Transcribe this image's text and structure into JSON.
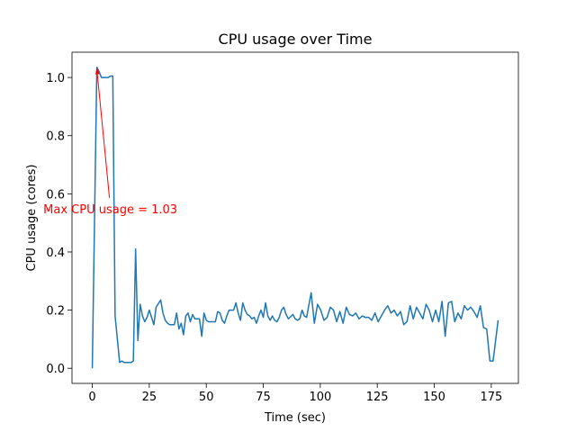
{
  "chart_data": {
    "type": "line",
    "title": "CPU usage over Time",
    "xlabel": "Time (sec)",
    "ylabel": "CPU usage (cores)",
    "x": [
      0,
      2,
      3,
      4,
      5,
      6,
      7,
      8,
      9,
      10,
      12,
      13,
      14,
      15,
      17,
      18,
      19,
      20,
      21,
      22,
      23,
      24,
      25,
      26,
      27,
      28,
      30,
      31,
      32,
      33,
      34,
      35,
      36,
      37,
      38,
      39,
      40,
      41,
      42,
      43,
      44,
      45,
      46,
      47,
      48,
      49,
      50,
      51,
      52,
      54,
      55,
      56,
      57,
      58,
      59,
      60,
      62,
      63,
      64,
      65,
      66,
      67,
      68,
      69,
      70,
      71,
      72,
      73,
      74,
      75,
      76,
      77,
      78,
      79,
      80,
      81,
      82,
      83,
      84,
      85,
      86,
      88,
      89,
      90,
      91,
      92,
      93,
      94,
      96,
      97.4,
      98.8,
      100.2,
      101.6,
      103,
      104.4,
      105.8,
      107.2,
      108.6,
      110,
      111.4,
      112.8,
      114.2,
      115.6,
      117,
      118.4,
      119.8,
      121.2,
      122.6,
      124,
      125.4,
      126.8,
      128.2,
      129.6,
      131,
      132.4,
      133.8,
      135.2,
      136.6,
      138,
      139.4,
      140.8,
      142.2,
      143.6,
      145,
      146.4,
      147.8,
      149.2,
      150.6,
      152,
      153.4,
      154.8,
      156.2,
      157.6,
      159,
      160.4,
      161.8,
      163.2,
      164.6,
      166,
      167.4,
      168.8,
      170.2,
      171.6,
      173,
      174.4,
      175.8,
      178
    ],
    "series": [
      {
        "name": "CPU usage",
        "color": "#1f77b4",
        "values": [
          0,
          1.035,
          1.02,
          1,
          1,
          1,
          1,
          1.005,
          1.005,
          0.18,
          0.02,
          0.025,
          0.02,
          0.02,
          0.02,
          0.025,
          0.41,
          0.095,
          0.22,
          0.18,
          0.16,
          0.175,
          0.2,
          0.175,
          0.15,
          0.21,
          0.235,
          0.19,
          0.165,
          0.155,
          0.15,
          0.15,
          0.15,
          0.19,
          0.135,
          0.155,
          0.115,
          0.18,
          0.19,
          0.16,
          0.185,
          0.17,
          0.17,
          0.17,
          0.11,
          0.19,
          0.165,
          0.16,
          0.16,
          0.16,
          0.195,
          0.19,
          0.165,
          0.155,
          0.18,
          0.2,
          0.2,
          0.225,
          0.19,
          0.165,
          0.225,
          0.2,
          0.185,
          0.18,
          0.17,
          0.175,
          0.155,
          0.18,
          0.2,
          0.175,
          0.225,
          0.18,
          0.165,
          0.18,
          0.165,
          0.16,
          0.175,
          0.2,
          0.21,
          0.185,
          0.17,
          0.185,
          0.17,
          0.165,
          0.17,
          0.2,
          0.18,
          0.175,
          0.26,
          0.155,
          0.22,
          0.2,
          0.165,
          0.175,
          0.21,
          0.2,
          0.16,
          0.195,
          0.155,
          0.21,
          0.185,
          0.18,
          0.19,
          0.17,
          0.18,
          0.175,
          0.175,
          0.165,
          0.19,
          0.16,
          0.18,
          0.2,
          0.215,
          0.19,
          0.2,
          0.18,
          0.195,
          0.15,
          0.16,
          0.215,
          0.17,
          0.21,
          0.19,
          0.17,
          0.22,
          0.2,
          0.16,
          0.2,
          0.16,
          0.23,
          0.11,
          0.225,
          0.23,
          0.16,
          0.19,
          0.17,
          0.215,
          0.2,
          0.21,
          0.195,
          0.175,
          0.215,
          0.14,
          0.135,
          0.025,
          0.025,
          0.165
        ]
      }
    ],
    "xlim": [
      -8.9,
      186.9
    ],
    "xticks": [
      0,
      25,
      50,
      75,
      100,
      125,
      150,
      175
    ],
    "ylim": [
      -0.052,
      1.087
    ],
    "yticks": [
      {
        "value": 0,
        "label": "0.0"
      },
      0.2,
      0.4,
      0.6,
      0.8,
      {
        "value": 1,
        "label": "1.0"
      }
    ],
    "annotation": {
      "text": "Max CPU usage = 1.03",
      "color": "red"
    }
  }
}
